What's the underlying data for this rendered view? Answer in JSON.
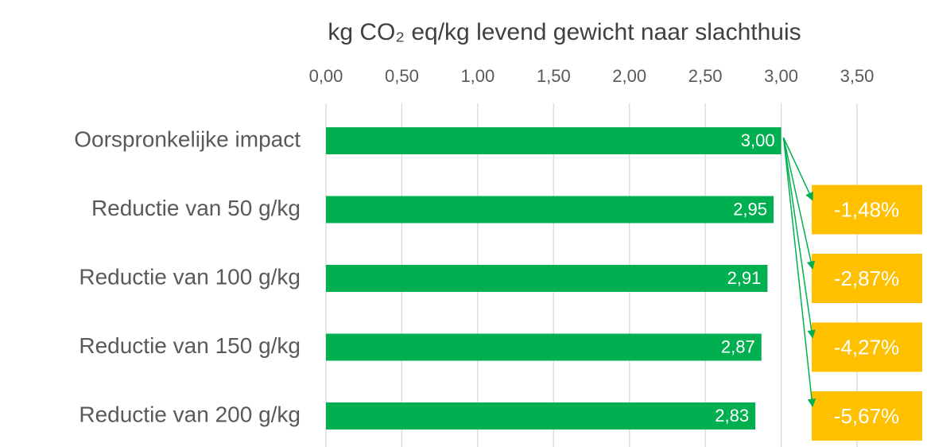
{
  "chart_data": {
    "type": "barh",
    "title": "kg CO₂ eq/kg levend gewicht naar slachthuis",
    "categories": [
      "Oorspronkelijke impact",
      "Reductie van 50 g/kg",
      "Reductie van 100 g/kg",
      "Reductie van 150 g/kg",
      "Reductie van 200 g/kg"
    ],
    "values": [
      3.0,
      2.95,
      2.91,
      2.87,
      2.83
    ],
    "value_labels": [
      "3,00",
      "2,95",
      "2,91",
      "2,87",
      "2,83"
    ],
    "color": "#00b050",
    "xlim": [
      0,
      3.5
    ],
    "xticks": [
      {
        "value": 0,
        "label": "0,00"
      },
      {
        "value": 0.5,
        "label": "0,50"
      },
      {
        "value": 1,
        "label": "1,00"
      },
      {
        "value": 1.5,
        "label": "1,50"
      },
      {
        "value": 2,
        "label": "2,00"
      },
      {
        "value": 2.5,
        "label": "2,50"
      },
      {
        "value": 3,
        "label": "3,00"
      },
      {
        "value": 3.5,
        "label": "3,50"
      }
    ],
    "grid": true,
    "annotations": [
      "-1,48%",
      "-2,87%",
      "-4,27%",
      "-5,67%"
    ],
    "annotation_color": "#ffc000"
  }
}
